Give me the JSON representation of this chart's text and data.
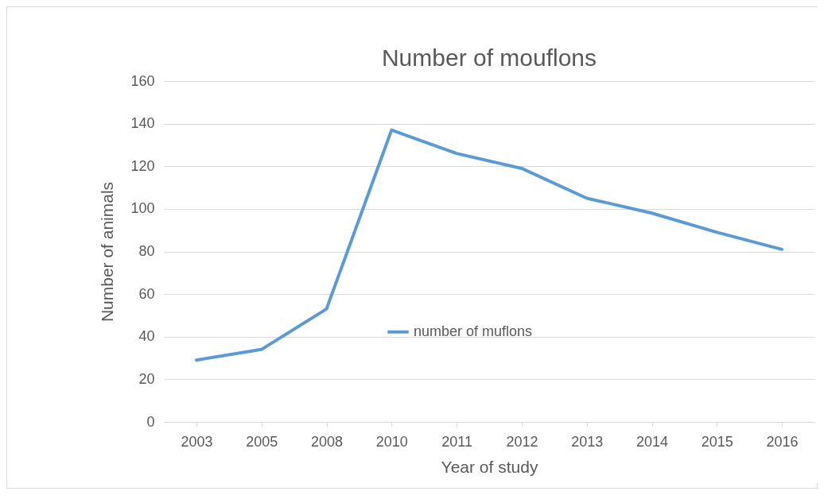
{
  "chart_data": {
    "type": "line",
    "title": "Number of mouflons",
    "xlabel": "Year of study",
    "ylabel": "Number of animals",
    "categories": [
      "2003",
      "2005",
      "2008",
      "2010",
      "2011",
      "2012",
      "2013",
      "2014",
      "2015",
      "2016"
    ],
    "series": [
      {
        "name": "number of muflons",
        "color": "#5b9bd5",
        "values": [
          29,
          34,
          53,
          137,
          126,
          119,
          105,
          98,
          89,
          81
        ]
      }
    ],
    "ylim": [
      0,
      160
    ],
    "yticks": [
      0,
      20,
      40,
      60,
      80,
      100,
      120,
      140,
      160
    ],
    "grid": "y",
    "legend": "center",
    "marker": "none",
    "line_style": "solid"
  }
}
